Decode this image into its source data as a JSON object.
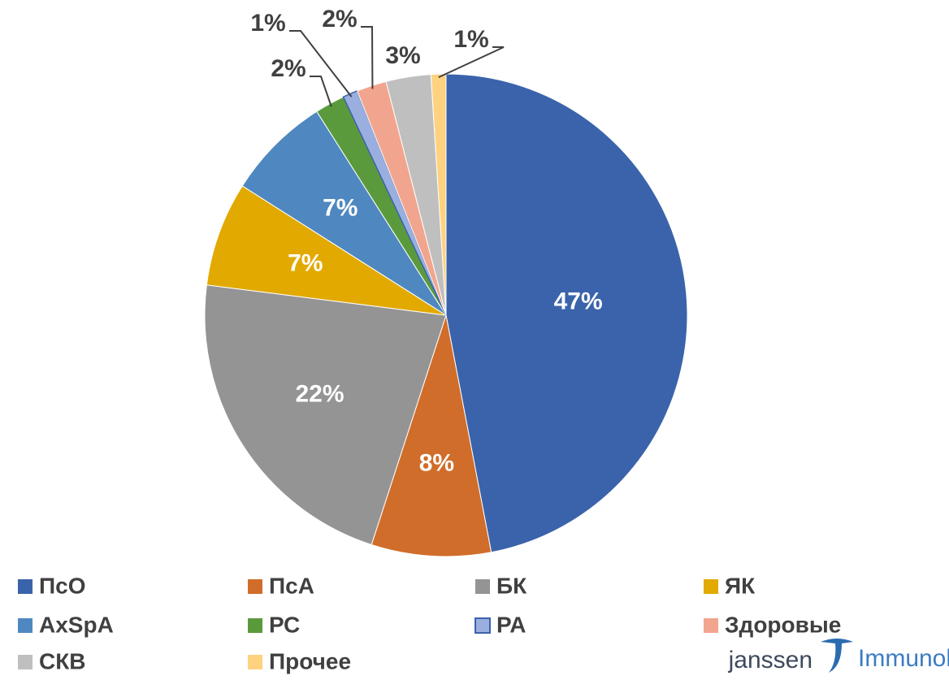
{
  "chart_data": {
    "type": "pie",
    "categories": [
      "ПсО",
      "ПсА",
      "БК",
      "ЯК",
      "AxSpA",
      "РС",
      "РА",
      "Здоровые",
      "СКВ",
      "Прочее"
    ],
    "values": [
      47,
      8,
      22,
      7,
      7,
      2,
      1,
      2,
      3,
      1
    ],
    "value_labels": [
      "47%",
      "8%",
      "22%",
      "7%",
      "7%",
      "2%",
      "1%",
      "2%",
      "3%",
      "1%"
    ],
    "colors": [
      "#3a63ab",
      "#d06d2a",
      "#949494",
      "#e2a900",
      "#4f88c0",
      "#5a9a3c",
      "#9aaee0",
      "#f2a58e",
      "#bfbfbf",
      "#ffd27f"
    ]
  },
  "logo": {
    "brand": "janssen",
    "division": "Immunology"
  }
}
